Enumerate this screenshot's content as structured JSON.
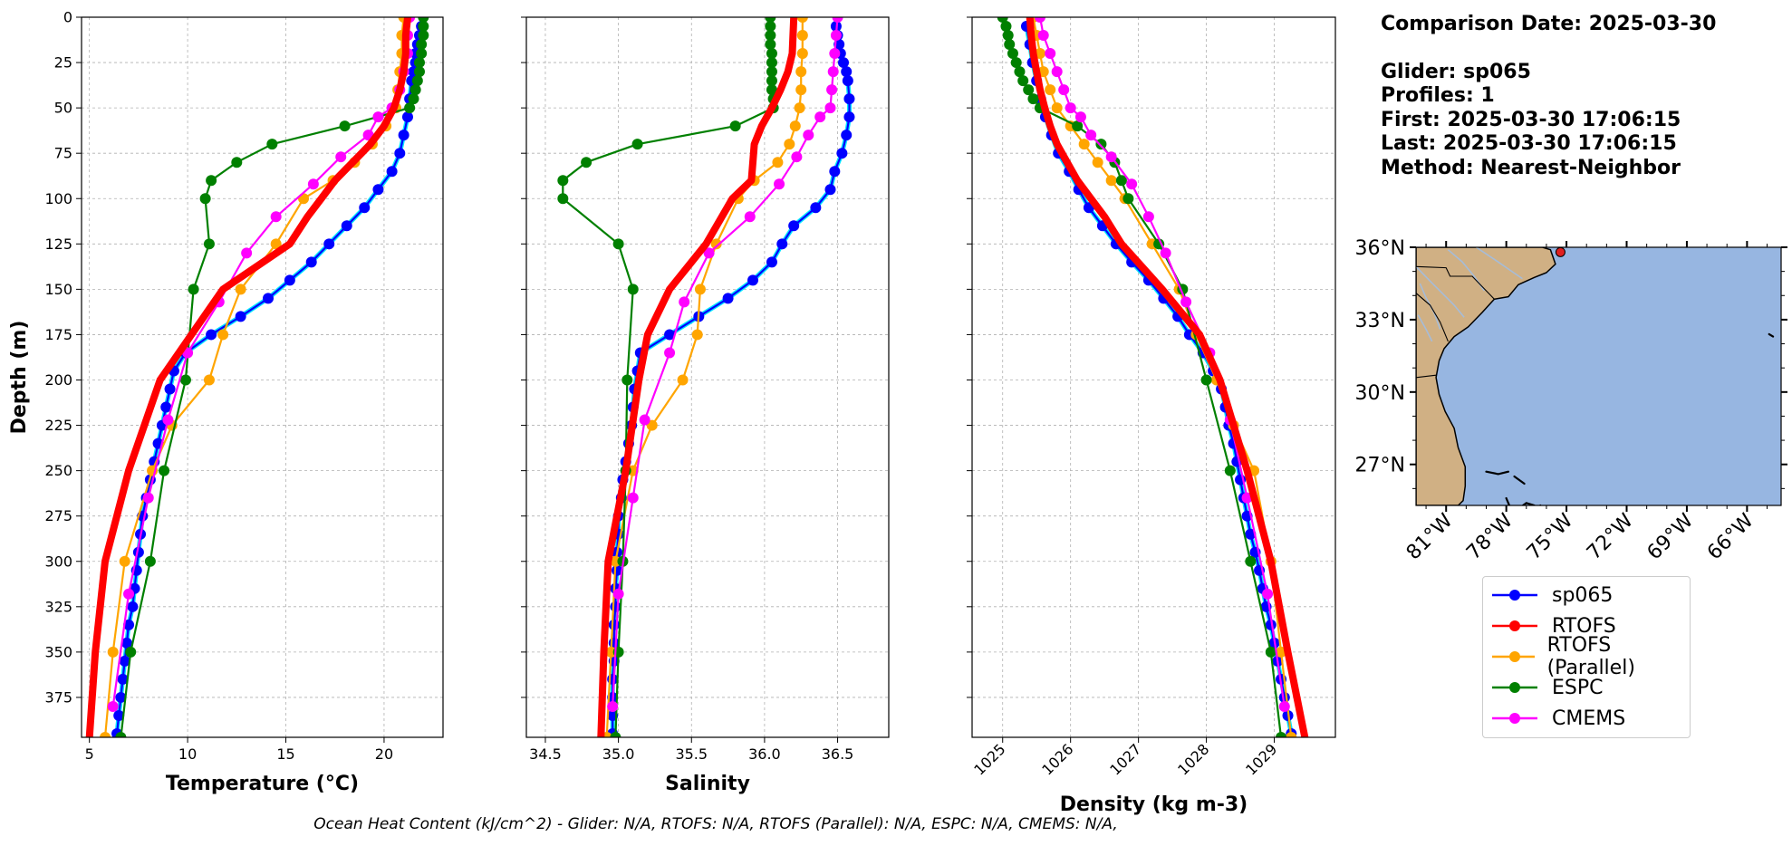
{
  "info": {
    "comparison_date": "Comparison Date: 2025-03-30",
    "glider": "Glider: sp065",
    "profiles": "Profiles: 1",
    "first": "First: 2025-03-30 17:06:15",
    "last": "Last: 2025-03-30 17:06:15",
    "method": "Method: Nearest-Neighbor"
  },
  "footer_note": "Ocean Heat Content (kJ/cm^2) - Glider: N/A,  RTOFS: N/A,  RTOFS (Parallel): N/A,  ESPC: N/A,  CMEMS: N/A,",
  "legend": [
    {
      "name": "sp065",
      "color": "#0000ff"
    },
    {
      "name": "RTOFS",
      "color": "#ff0000"
    },
    {
      "name": "RTOFS (Parallel)",
      "color": "#ffa500"
    },
    {
      "name": "ESPC",
      "color": "#008000"
    },
    {
      "name": "CMEMS",
      "color": "#ff00ff"
    }
  ],
  "chart_data": [
    {
      "type": "line",
      "xlabel": "Temperature (°C)",
      "ylabel": "Depth (m)",
      "xlim": [
        4.6,
        23.0
      ],
      "ylim": [
        397,
        0
      ],
      "xticks": [
        5,
        10,
        15,
        20
      ],
      "yticks": [
        0,
        25,
        50,
        75,
        100,
        125,
        150,
        175,
        200,
        225,
        250,
        275,
        300,
        325,
        350,
        375
      ],
      "grid": true,
      "series": [
        {
          "name": "sp065",
          "color": "#0000ff",
          "depth": [
            5,
            10,
            15,
            20,
            25,
            30,
            35,
            45,
            55,
            65,
            75,
            85,
            95,
            105,
            115,
            125,
            135,
            145,
            155,
            165,
            175,
            185,
            195,
            205,
            215,
            225,
            235,
            245,
            255,
            265,
            275,
            285,
            295,
            305,
            315,
            325,
            335,
            345,
            355,
            365,
            375,
            385,
            395
          ],
          "values": [
            21.9,
            21.8,
            21.7,
            21.6,
            21.6,
            21.5,
            21.4,
            21.3,
            21.2,
            21.0,
            20.8,
            20.4,
            19.7,
            19.0,
            18.1,
            17.2,
            16.3,
            15.2,
            14.1,
            12.7,
            11.2,
            9.9,
            9.3,
            9.1,
            8.9,
            8.7,
            8.5,
            8.3,
            8.1,
            7.9,
            7.7,
            7.6,
            7.5,
            7.4,
            7.3,
            7.2,
            7.0,
            6.9,
            6.8,
            6.7,
            6.6,
            6.5,
            6.4
          ]
        },
        {
          "name": "RTOFS",
          "color": "#ff0000",
          "depth": [
            0,
            10,
            20,
            30,
            40,
            50,
            60,
            70,
            80,
            90,
            100,
            110,
            125,
            150,
            175,
            200,
            250,
            300,
            350,
            397
          ],
          "values": [
            21.2,
            21.1,
            21.1,
            21.0,
            20.8,
            20.5,
            20.0,
            19.3,
            18.4,
            17.5,
            16.8,
            16.1,
            15.2,
            11.8,
            10.2,
            8.6,
            7.0,
            5.8,
            5.3,
            5.0
          ]
        },
        {
          "name": "RTOFS (Parallel)",
          "color": "#ffa500",
          "depth": [
            0,
            10,
            20,
            30,
            40,
            50,
            60,
            70,
            80,
            90,
            100,
            125,
            150,
            175,
            200,
            225,
            250,
            300,
            350,
            397
          ],
          "values": [
            21.0,
            20.9,
            20.9,
            20.8,
            20.7,
            20.6,
            20.1,
            19.4,
            18.5,
            17.4,
            15.9,
            14.5,
            12.7,
            11.8,
            11.1,
            9.2,
            8.2,
            6.8,
            6.2,
            5.8
          ]
        },
        {
          "name": "ESPC",
          "color": "#008000",
          "depth": [
            0,
            5,
            10,
            15,
            20,
            25,
            30,
            35,
            40,
            45,
            50,
            60,
            70,
            80,
            90,
            100,
            125,
            150,
            200,
            250,
            300,
            350,
            397
          ],
          "values": [
            22.0,
            22.0,
            22.0,
            21.9,
            21.9,
            21.8,
            21.8,
            21.7,
            21.6,
            21.5,
            21.3,
            18.0,
            14.3,
            12.5,
            11.2,
            10.9,
            11.1,
            10.3,
            9.9,
            8.8,
            8.1,
            7.1,
            6.6
          ]
        },
        {
          "name": "CMEMS",
          "color": "#ff00ff",
          "depth": [
            0,
            10,
            20,
            30,
            40,
            50,
            55,
            65,
            77,
            92,
            110,
            130,
            157,
            185,
            222,
            265,
            318,
            380
          ],
          "values": [
            21.3,
            21.2,
            21.2,
            21.0,
            20.8,
            20.4,
            19.7,
            19.2,
            17.8,
            16.4,
            14.5,
            13.0,
            11.6,
            10.0,
            9.0,
            8.0,
            7.0,
            6.2
          ]
        }
      ]
    },
    {
      "type": "line",
      "xlabel": "Salinity",
      "ylabel": "",
      "xlim": [
        34.37,
        36.85
      ],
      "ylim": [
        397,
        0
      ],
      "xticks": [
        "34.5",
        "35.0",
        "35.5",
        "36.0",
        "36.5"
      ],
      "yticks": [
        0,
        25,
        50,
        75,
        100,
        125,
        150,
        175,
        200,
        225,
        250,
        275,
        300,
        325,
        350,
        375
      ],
      "grid": true,
      "series": [
        {
          "name": "sp065",
          "color": "#0000ff",
          "depth": [
            5,
            10,
            15,
            20,
            25,
            30,
            35,
            45,
            55,
            65,
            75,
            85,
            95,
            105,
            115,
            125,
            135,
            145,
            155,
            165,
            175,
            185,
            195,
            205,
            215,
            225,
            235,
            245,
            255,
            265,
            275,
            285,
            295,
            305,
            315,
            325,
            335,
            345,
            355,
            365,
            375,
            385,
            395
          ],
          "values": [
            36.49,
            36.5,
            36.51,
            36.52,
            36.54,
            36.56,
            36.57,
            36.58,
            36.58,
            36.56,
            36.53,
            36.48,
            36.45,
            36.35,
            36.2,
            36.12,
            36.05,
            35.92,
            35.75,
            35.55,
            35.35,
            35.15,
            35.13,
            35.11,
            35.1,
            35.09,
            35.07,
            35.05,
            35.03,
            35.02,
            35.0,
            35.0,
            34.99,
            34.99,
            34.98,
            34.98,
            34.97,
            34.97,
            34.97,
            34.96,
            34.96,
            34.96,
            34.96
          ]
        },
        {
          "name": "RTOFS",
          "color": "#ff0000",
          "depth": [
            0,
            20,
            30,
            40,
            50,
            60,
            70,
            80,
            90,
            100,
            125,
            150,
            175,
            200,
            250,
            300,
            350,
            397
          ],
          "values": [
            36.2,
            36.19,
            36.16,
            36.11,
            36.05,
            35.98,
            35.93,
            35.92,
            35.91,
            35.78,
            35.6,
            35.35,
            35.2,
            35.14,
            35.05,
            34.93,
            34.9,
            34.88
          ]
        },
        {
          "name": "RTOFS (Parallel)",
          "color": "#ffa500",
          "depth": [
            0,
            10,
            20,
            30,
            40,
            50,
            60,
            70,
            80,
            90,
            100,
            125,
            150,
            175,
            200,
            225,
            250,
            300,
            350,
            397
          ],
          "values": [
            36.26,
            36.26,
            36.26,
            36.25,
            36.25,
            36.24,
            36.21,
            36.17,
            36.09,
            35.93,
            35.82,
            35.67,
            35.56,
            35.54,
            35.44,
            35.23,
            35.1,
            34.98,
            34.95,
            34.92
          ]
        },
        {
          "name": "ESPC",
          "color": "#008000",
          "depth": [
            0,
            5,
            10,
            15,
            20,
            25,
            30,
            35,
            40,
            45,
            50,
            60,
            70,
            80,
            90,
            100,
            125,
            150,
            200,
            250,
            300,
            350,
            397
          ],
          "values": [
            36.04,
            36.04,
            36.04,
            36.04,
            36.05,
            36.05,
            36.05,
            36.05,
            36.05,
            36.06,
            36.06,
            35.8,
            35.13,
            34.78,
            34.62,
            34.62,
            35.0,
            35.1,
            35.06,
            35.05,
            35.03,
            35.0,
            34.98
          ]
        },
        {
          "name": "CMEMS",
          "color": "#ff00ff",
          "depth": [
            0,
            10,
            20,
            30,
            40,
            50,
            55,
            65,
            77,
            92,
            110,
            130,
            157,
            185,
            222,
            265,
            318,
            380
          ],
          "values": [
            36.5,
            36.49,
            36.48,
            36.47,
            36.46,
            36.45,
            36.38,
            36.3,
            36.22,
            36.1,
            35.9,
            35.62,
            35.45,
            35.35,
            35.18,
            35.1,
            35.0,
            34.96
          ]
        }
      ]
    },
    {
      "type": "line",
      "xlabel": "Density (kg m-3)",
      "ylabel": "",
      "xlim": [
        1024.55,
        1029.9
      ],
      "ylim": [
        397,
        0
      ],
      "xticks": [
        1025,
        1026,
        1027,
        1028,
        1029
      ],
      "yticks": [
        0,
        25,
        50,
        75,
        100,
        125,
        150,
        175,
        200,
        225,
        250,
        275,
        300,
        325,
        350,
        375
      ],
      "grid": true,
      "series": [
        {
          "name": "sp065",
          "color": "#0000ff",
          "depth": [
            5,
            15,
            25,
            35,
            45,
            55,
            65,
            75,
            85,
            95,
            105,
            115,
            125,
            135,
            145,
            155,
            165,
            175,
            185,
            195,
            205,
            215,
            225,
            235,
            245,
            255,
            265,
            275,
            285,
            295,
            305,
            315,
            325,
            335,
            345,
            355,
            365,
            375,
            385,
            395
          ],
          "values": [
            1025.35,
            1025.4,
            1025.44,
            1025.5,
            1025.56,
            1025.63,
            1025.72,
            1025.82,
            1025.98,
            1026.12,
            1026.27,
            1026.47,
            1026.67,
            1026.9,
            1027.15,
            1027.37,
            1027.58,
            1027.75,
            1027.95,
            1028.1,
            1028.22,
            1028.28,
            1028.33,
            1028.4,
            1028.45,
            1028.5,
            1028.55,
            1028.6,
            1028.65,
            1028.72,
            1028.78,
            1028.83,
            1028.88,
            1028.95,
            1029.0,
            1029.05,
            1029.1,
            1029.15,
            1029.2,
            1029.25
          ]
        },
        {
          "name": "RTOFS",
          "color": "#ff0000",
          "depth": [
            0,
            10,
            20,
            30,
            40,
            50,
            60,
            70,
            80,
            90,
            100,
            110,
            125,
            150,
            175,
            200,
            250,
            300,
            350,
            397
          ],
          "values": [
            1025.4,
            1025.42,
            1025.45,
            1025.5,
            1025.55,
            1025.62,
            1025.7,
            1025.8,
            1025.95,
            1026.1,
            1026.3,
            1026.5,
            1026.75,
            1027.35,
            1027.9,
            1028.2,
            1028.6,
            1028.95,
            1029.2,
            1029.45
          ]
        },
        {
          "name": "RTOFS (Parallel)",
          "color": "#ffa500",
          "depth": [
            0,
            10,
            20,
            30,
            40,
            50,
            60,
            70,
            80,
            90,
            100,
            125,
            150,
            175,
            200,
            225,
            250,
            300,
            350,
            397
          ],
          "values": [
            1025.45,
            1025.5,
            1025.55,
            1025.6,
            1025.7,
            1025.8,
            1026.0,
            1026.2,
            1026.4,
            1026.6,
            1026.8,
            1027.2,
            1027.6,
            1027.85,
            1028.15,
            1028.4,
            1028.7,
            1028.95,
            1029.1,
            1029.25
          ]
        },
        {
          "name": "ESPC",
          "color": "#008000",
          "depth": [
            0,
            5,
            10,
            15,
            20,
            25,
            30,
            35,
            40,
            45,
            50,
            60,
            70,
            80,
            90,
            100,
            125,
            150,
            200,
            250,
            300,
            350,
            397
          ],
          "values": [
            1025.0,
            1025.05,
            1025.08,
            1025.1,
            1025.15,
            1025.2,
            1025.25,
            1025.3,
            1025.38,
            1025.45,
            1025.55,
            1026.1,
            1026.45,
            1026.65,
            1026.75,
            1026.85,
            1027.3,
            1027.65,
            1028.0,
            1028.35,
            1028.65,
            1028.95,
            1029.1
          ]
        },
        {
          "name": "CMEMS",
          "color": "#ff00ff",
          "depth": [
            0,
            10,
            20,
            30,
            40,
            50,
            55,
            65,
            77,
            92,
            110,
            130,
            157,
            185,
            222,
            265,
            318,
            380
          ],
          "values": [
            1025.55,
            1025.6,
            1025.7,
            1025.8,
            1025.9,
            1026.0,
            1026.15,
            1026.3,
            1026.6,
            1026.9,
            1027.15,
            1027.4,
            1027.7,
            1028.05,
            1028.35,
            1028.6,
            1028.9,
            1029.15
          ]
        }
      ]
    }
  ],
  "map": {
    "lat_labels": [
      "36°N",
      "33°N",
      "30°N",
      "27°N"
    ],
    "lon_labels": [
      "81°W",
      "78°W",
      "75°W",
      "72°W",
      "69°W",
      "66°W"
    ],
    "ocean_color": "#97b6e1",
    "land_color": "#d0b084",
    "glider_marker": {
      "lat": 35.8,
      "lon": -75.3,
      "color": "#e02020"
    }
  }
}
